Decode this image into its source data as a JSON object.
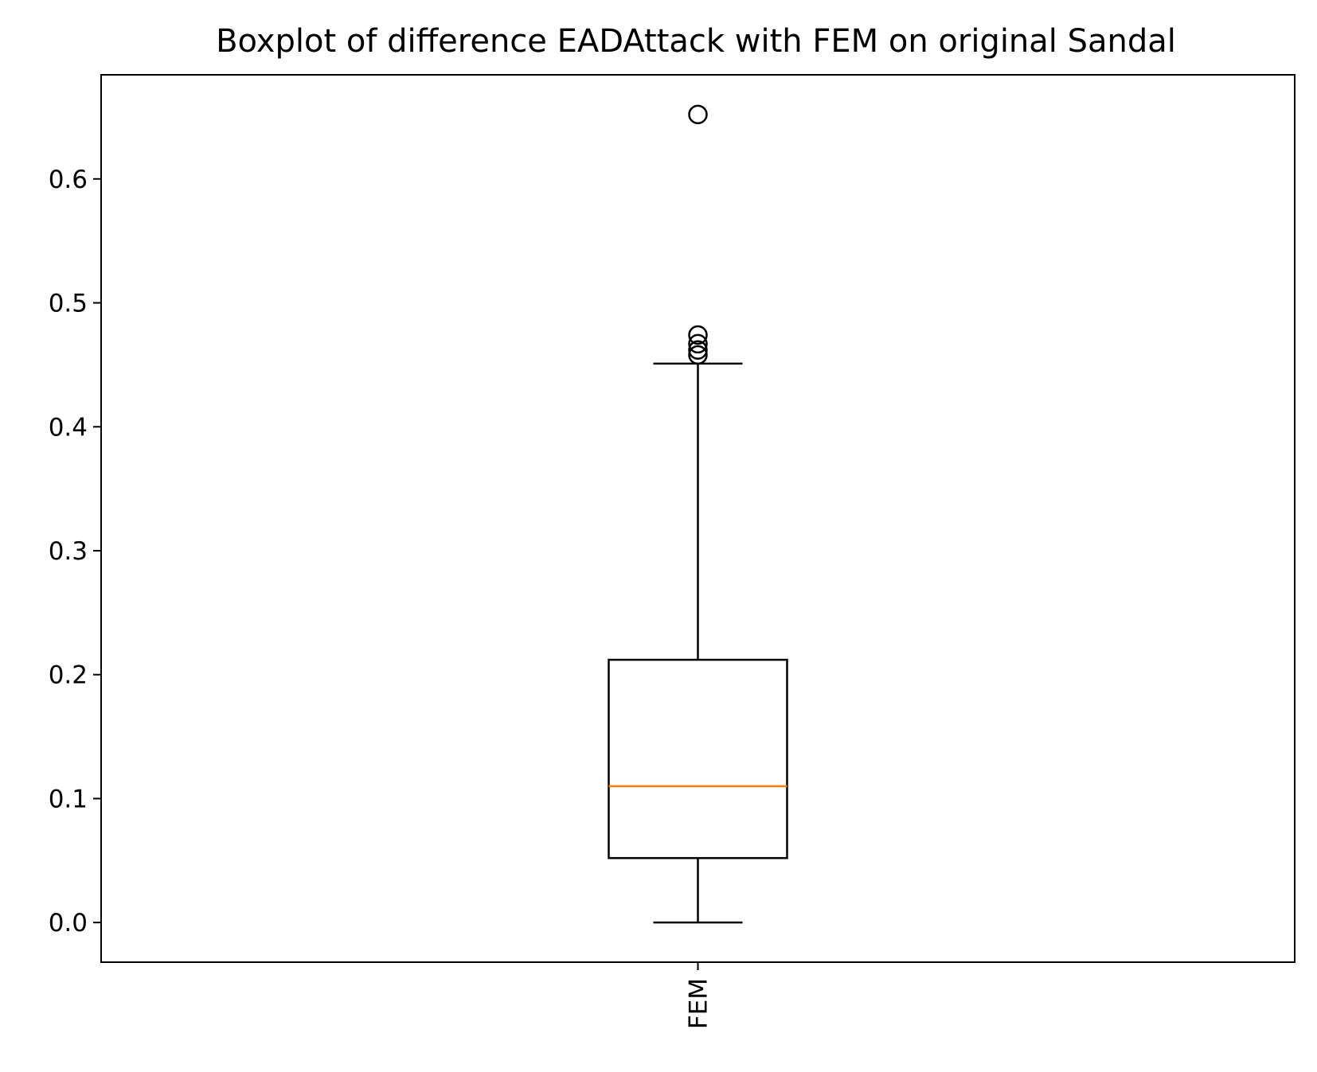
{
  "chart_data": {
    "type": "boxplot",
    "title": "Boxplot of difference EADAttack with FEM on original Sandal",
    "xlabel": "",
    "ylabel": "",
    "categories": [
      "FEM"
    ],
    "ylim": [
      -0.032,
      0.684
    ],
    "yticks": [
      0.0,
      0.1,
      0.2,
      0.3,
      0.4,
      0.5,
      0.6
    ],
    "ytick_labels": [
      "0.0",
      "0.1",
      "0.2",
      "0.3",
      "0.4",
      "0.5",
      "0.6"
    ],
    "grid": false,
    "boxes": [
      {
        "name": "FEM",
        "whisker_low": 0.0,
        "q1": 0.052,
        "median": 0.11,
        "q3": 0.212,
        "whisker_high": 0.451,
        "outliers": [
          0.458,
          0.462,
          0.467,
          0.474,
          0.652
        ]
      }
    ],
    "colors": {
      "box": "#000000",
      "median": "#ff7f0e"
    }
  }
}
